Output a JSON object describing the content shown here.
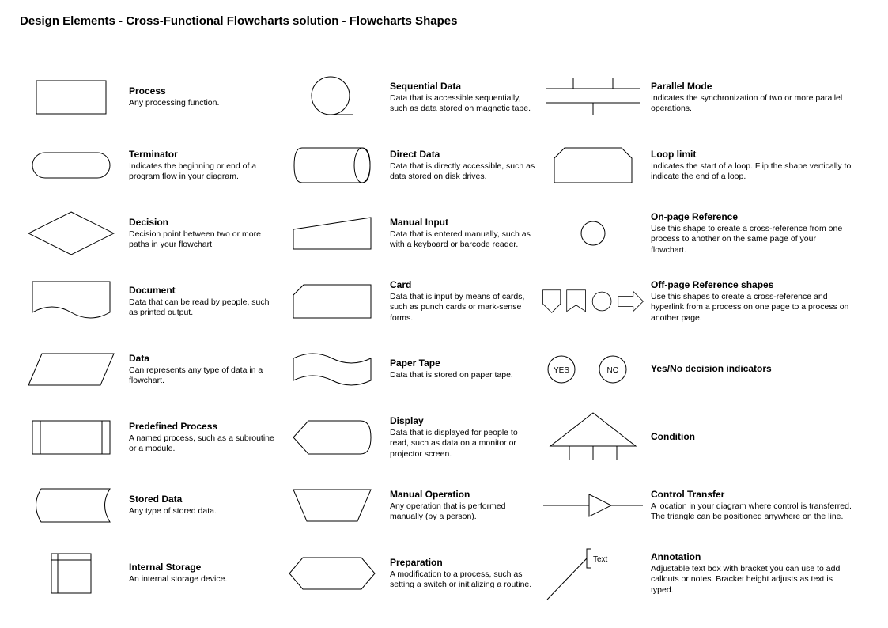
{
  "title": "Design Elements - Cross-Functional Flowcharts solution - Flowcharts Shapes",
  "stroke": "#000000",
  "fill": "#ffffff",
  "stroke_width": 1,
  "shapes": [
    {
      "col": 0,
      "row": 0,
      "key": "process",
      "label": "Process",
      "desc": "Any processing function."
    },
    {
      "col": 0,
      "row": 1,
      "key": "terminator",
      "label": "Terminator",
      "desc": "Indicates the beginning or end of a program flow in your diagram."
    },
    {
      "col": 0,
      "row": 2,
      "key": "decision",
      "label": "Decision",
      "desc": "Decision point between two or more paths in your flowchart."
    },
    {
      "col": 0,
      "row": 3,
      "key": "document",
      "label": "Document",
      "desc": "Data that can be read by people, such as printed output."
    },
    {
      "col": 0,
      "row": 4,
      "key": "data",
      "label": "Data",
      "desc": "Can represents any type of data in a flowchart."
    },
    {
      "col": 0,
      "row": 5,
      "key": "predefined",
      "label": "Predefined Process",
      "desc": "A named process, such as a subroutine or a module."
    },
    {
      "col": 0,
      "row": 6,
      "key": "stored",
      "label": "Stored Data",
      "desc": "Any type of stored data."
    },
    {
      "col": 0,
      "row": 7,
      "key": "internal",
      "label": "Internal Storage",
      "desc": "An internal storage device."
    },
    {
      "col": 1,
      "row": 0,
      "key": "seqdata",
      "label": "Sequential Data",
      "desc": "Data that is accessible sequentially, such as data stored on magnetic tape."
    },
    {
      "col": 1,
      "row": 1,
      "key": "directdata",
      "label": "Direct Data",
      "desc": "Data that is directly accessible, such as data stored on disk drives."
    },
    {
      "col": 1,
      "row": 2,
      "key": "manualinput",
      "label": "Manual Input",
      "desc": "Data that is entered manually, such as with a keyboard or barcode reader."
    },
    {
      "col": 1,
      "row": 3,
      "key": "card",
      "label": "Card",
      "desc": "Data that is input by means of cards, such as punch cards or mark-sense forms."
    },
    {
      "col": 1,
      "row": 4,
      "key": "papertape",
      "label": "Paper Tape",
      "desc": "Data that is stored on paper tape."
    },
    {
      "col": 1,
      "row": 5,
      "key": "display",
      "label": "Display",
      "desc": "Data that is displayed for people to read, such as data on a monitor or projector screen."
    },
    {
      "col": 1,
      "row": 6,
      "key": "manualop",
      "label": "Manual Operation",
      "desc": "Any operation that is performed manually (by a person)."
    },
    {
      "col": 1,
      "row": 7,
      "key": "preparation",
      "label": "Preparation",
      "desc": "A modification to a process, such as setting a switch or initializing a routine."
    },
    {
      "col": 2,
      "row": 0,
      "key": "parallel",
      "label": "Parallel Mode",
      "desc": "Indicates the synchronization of two or more parallel operations."
    },
    {
      "col": 2,
      "row": 1,
      "key": "looplimit",
      "label": "Loop limit",
      "desc": "Indicates the start of a loop. Flip the shape vertically to indicate the end of a loop."
    },
    {
      "col": 2,
      "row": 2,
      "key": "onpage",
      "label": "On-page Reference",
      "desc": "Use this shape to create a cross-reference from one process to another on the same page of your flowchart."
    },
    {
      "col": 2,
      "row": 3,
      "key": "offpage",
      "label": "Off-page Reference shapes",
      "desc": "Use this shapes to create a cross-reference and hyperlink from a process on one page to a process on another page."
    },
    {
      "col": 2,
      "row": 4,
      "key": "yesno",
      "label": "Yes/No decision indicators",
      "desc": "",
      "yes": "YES",
      "no": "NO"
    },
    {
      "col": 2,
      "row": 5,
      "key": "condition",
      "label": "Condition",
      "desc": ""
    },
    {
      "col": 2,
      "row": 6,
      "key": "controltransfer",
      "label": "Control Transfer",
      "desc": "A location in your diagram where control is transferred. The triangle can be positioned anywhere on the line."
    },
    {
      "col": 2,
      "row": 7,
      "key": "annotation",
      "label": "Annotation",
      "desc": "Adjustable text box with bracket you can use to add callouts or notes. Bracket height adjusts as text is typed.",
      "text": "Text"
    }
  ]
}
